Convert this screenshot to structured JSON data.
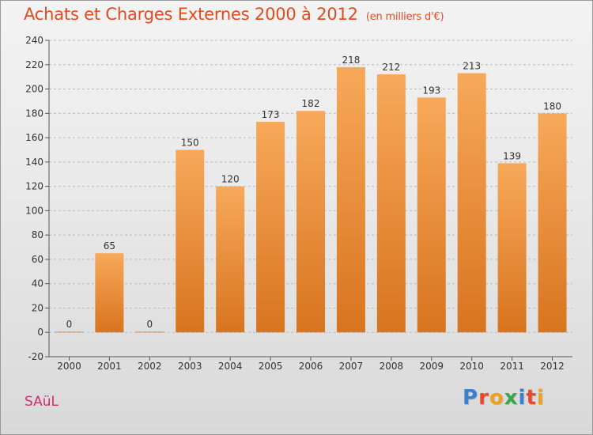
{
  "header": {
    "title": "Achats et Charges Externes 2000 à 2012",
    "unit": "(en milliers d'€)"
  },
  "footer": {
    "place": "SAüL",
    "logo_text": "Proxiti",
    "logo_letters": [
      {
        "char": "P",
        "color": "#3a7fd0"
      },
      {
        "char": "r",
        "color": "#e8482d"
      },
      {
        "char": "o",
        "color": "#f0a020"
      },
      {
        "char": "x",
        "color": "#3aa64a"
      },
      {
        "char": "i",
        "color": "#3a7fd0"
      },
      {
        "char": "t",
        "color": "#e8482d"
      },
      {
        "char": "i",
        "color": "#f0a020"
      }
    ]
  },
  "colors": {
    "bar_top": "#f7a95a",
    "bar_bottom": "#d8741f",
    "title": "#e04b1f",
    "grid": "#bbbbbb"
  },
  "chart_data": {
    "type": "bar",
    "categories": [
      "2000",
      "2001",
      "2002",
      "2003",
      "2004",
      "2005",
      "2006",
      "2007",
      "2008",
      "2009",
      "2010",
      "2011",
      "2012"
    ],
    "values": [
      0,
      65,
      0,
      150,
      120,
      173,
      182,
      218,
      212,
      193,
      213,
      139,
      180
    ],
    "ylim": [
      -20,
      240
    ],
    "yticks": [
      -20,
      0,
      20,
      40,
      60,
      80,
      100,
      120,
      140,
      160,
      180,
      200,
      220,
      240
    ],
    "grid": true
  }
}
